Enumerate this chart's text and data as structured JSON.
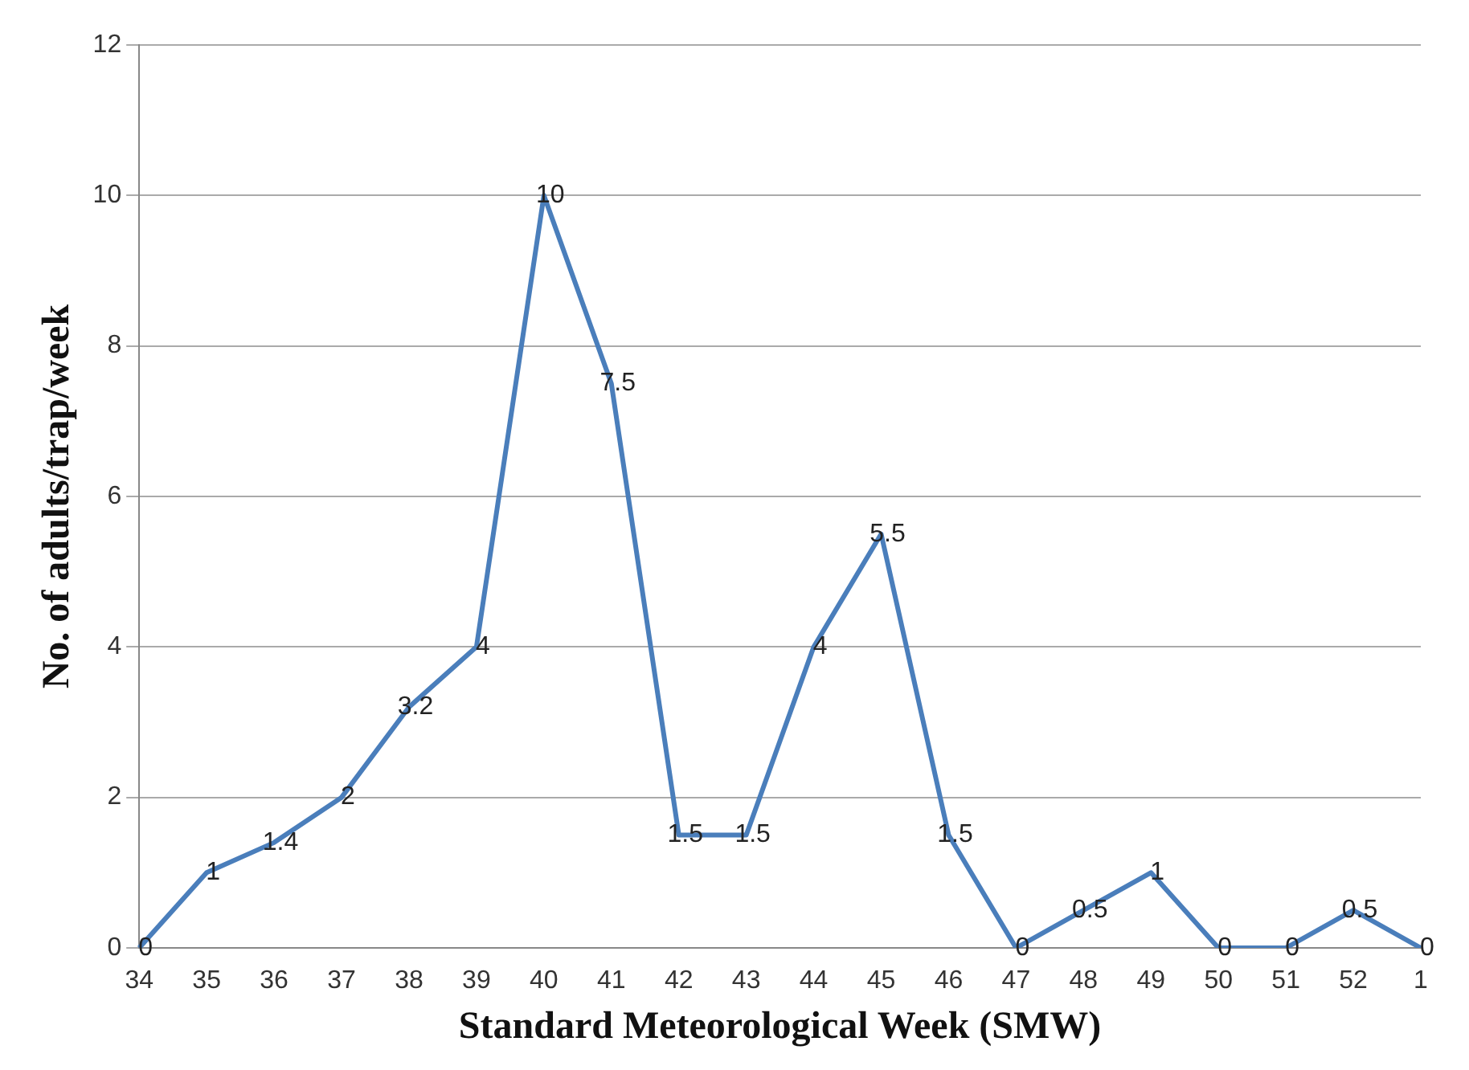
{
  "chart_data": {
    "type": "line",
    "xlabel": "Standard Meteorological Week (SMW)",
    "ylabel": "No. of adults/trap/week",
    "categories": [
      "34",
      "35",
      "36",
      "37",
      "38",
      "39",
      "40",
      "41",
      "42",
      "43",
      "44",
      "45",
      "46",
      "47",
      "48",
      "49",
      "50",
      "51",
      "52",
      "1"
    ],
    "series": [
      {
        "color": "#4a7ebb",
        "values": [
          0,
          1,
          1.4,
          2,
          3.2,
          4,
          10,
          7.5,
          1.5,
          1.5,
          4,
          5.5,
          1.5,
          0,
          0.5,
          1,
          0,
          0,
          0.5,
          0
        ]
      }
    ],
    "ylim": [
      0,
      12
    ],
    "yticks": [
      0,
      2,
      4,
      6,
      8,
      10,
      12
    ],
    "grid": "y",
    "legend": false,
    "marker": "none",
    "line_style": "solid",
    "data_labels": true
  }
}
